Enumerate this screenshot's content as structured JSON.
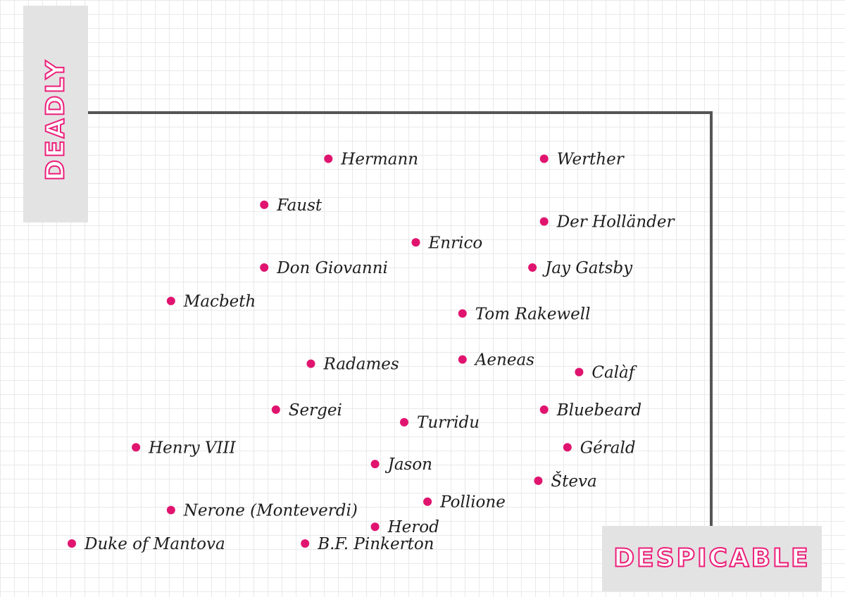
{
  "chart_data": {
    "type": "scatter",
    "title": "",
    "xlabel": "DESPICABLE",
    "ylabel": "DEADLY",
    "marker_color": "#e0146f",
    "axis_color": "#555555",
    "points": [
      {
        "label": "Hermann",
        "x": 4.4,
        "y": 9.2
      },
      {
        "label": "Werther",
        "x": 8.1,
        "y": 9.2
      },
      {
        "label": "Faust",
        "x": 3.3,
        "y": 8.1
      },
      {
        "label": "Der Holländer",
        "x": 8.1,
        "y": 7.7
      },
      {
        "label": "Enrico",
        "x": 5.9,
        "y": 7.2
      },
      {
        "label": "Don Giovanni",
        "x": 3.3,
        "y": 6.6
      },
      {
        "label": "Jay Gatsby",
        "x": 7.9,
        "y": 6.6
      },
      {
        "label": "Macbeth",
        "x": 1.7,
        "y": 5.8
      },
      {
        "label": "Tom Rakewell",
        "x": 6.7,
        "y": 5.5
      },
      {
        "label": "Radames",
        "x": 4.1,
        "y": 4.3
      },
      {
        "label": "Aeneas",
        "x": 6.7,
        "y": 4.4
      },
      {
        "label": "Calàf",
        "x": 8.7,
        "y": 4.1
      },
      {
        "label": "Sergei",
        "x": 3.5,
        "y": 3.2
      },
      {
        "label": "Turridu",
        "x": 5.7,
        "y": 2.9
      },
      {
        "label": "Bluebeard",
        "x": 8.1,
        "y": 3.2
      },
      {
        "label": "Henry VIII",
        "x": 1.1,
        "y": 2.3
      },
      {
        "label": "Gérald",
        "x": 8.5,
        "y": 2.3
      },
      {
        "label": "Jason",
        "x": 5.2,
        "y": 1.9
      },
      {
        "label": "Števa",
        "x": 8.0,
        "y": 1.5
      },
      {
        "label": "Pollione",
        "x": 6.1,
        "y": 1.0
      },
      {
        "label": "Nerone (Monteverdi)",
        "x": 1.7,
        "y": 0.8
      },
      {
        "label": "Herod",
        "x": 5.2,
        "y": 0.4
      },
      {
        "label": "Duke of Mantova",
        "x": 0.0,
        "y": 0.0
      },
      {
        "label": "B.F. Pinkerton",
        "x": 4.0,
        "y": 0.0
      }
    ]
  }
}
